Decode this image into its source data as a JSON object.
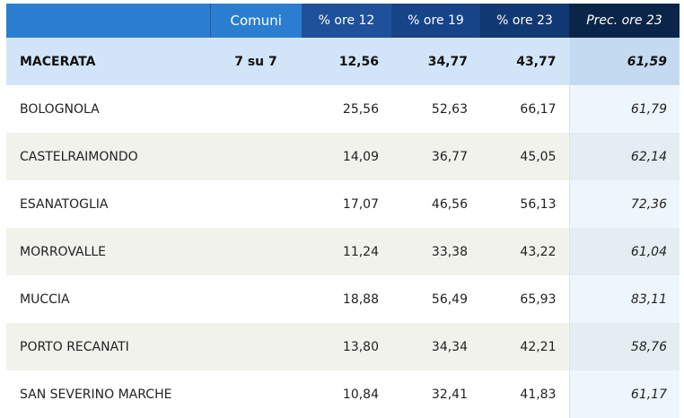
{
  "header": {
    "comuni": "Comuni",
    "ore12": "% ore 12",
    "ore19": "% ore 19",
    "ore23": "% ore 23",
    "prec": "Prec. ore 23"
  },
  "summary": {
    "name": "MACERATA",
    "comuni": "7 su 7",
    "ore12": "12,56",
    "ore19": "34,77",
    "ore23": "43,77",
    "prec": "61,59"
  },
  "rows": [
    {
      "name": "BOLOGNOLA",
      "ore12": "25,56",
      "ore19": "52,63",
      "ore23": "66,17",
      "prec": "61,79"
    },
    {
      "name": "CASTELRAIMONDO",
      "ore12": "14,09",
      "ore19": "36,77",
      "ore23": "45,05",
      "prec": "62,14"
    },
    {
      "name": "ESANATOGLIA",
      "ore12": "17,07",
      "ore19": "46,56",
      "ore23": "56,13",
      "prec": "72,36"
    },
    {
      "name": "MORROVALLE",
      "ore12": "11,24",
      "ore19": "33,38",
      "ore23": "43,22",
      "prec": "61,04"
    },
    {
      "name": "MUCCIA",
      "ore12": "18,88",
      "ore19": "56,49",
      "ore23": "65,93",
      "prec": "83,11"
    },
    {
      "name": "PORTO RECANATI",
      "ore12": "13,80",
      "ore19": "34,34",
      "ore23": "42,21",
      "prec": "58,76"
    },
    {
      "name": "SAN SEVERINO MARCHE",
      "ore12": "10,84",
      "ore19": "32,41",
      "ore23": "41,83",
      "prec": "61,17"
    }
  ],
  "colors": {
    "header_light": "#2b7ecf",
    "header_dark": "#0a2548",
    "summary_row": "#d2e5f8",
    "alt_row": "#f1f2ec"
  }
}
